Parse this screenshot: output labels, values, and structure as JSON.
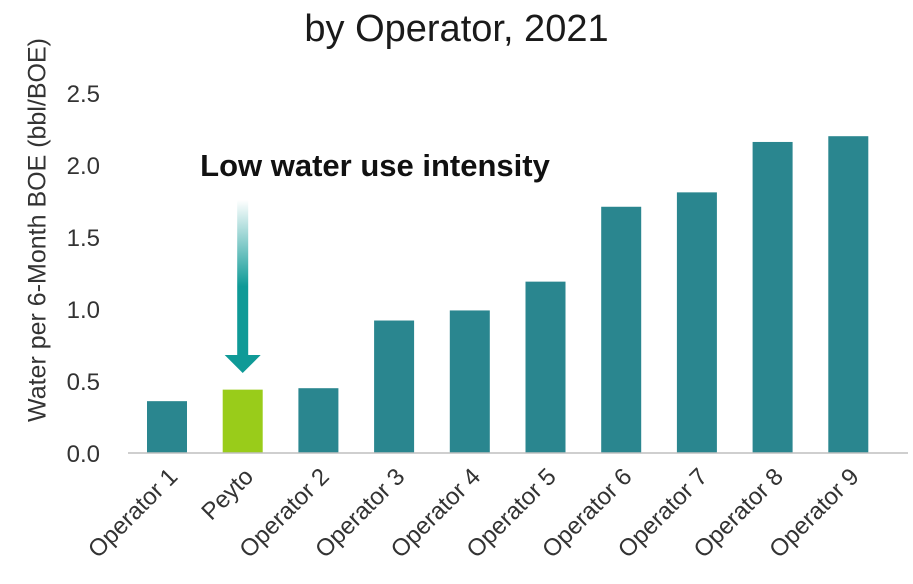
{
  "chart_data": {
    "type": "bar",
    "title": "by Operator, 2021",
    "ylabel": "Water per 6-Month BOE (bbl/BOE)",
    "xlabel": "",
    "ylim": [
      0,
      2.5
    ],
    "yticks": [
      "0.0",
      "0.5",
      "1.0",
      "1.5",
      "2.0",
      "2.5"
    ],
    "categories": [
      "Operator 1",
      "Peyto",
      "Operator 2",
      "Operator 3",
      "Operator 4",
      "Operator 5",
      "Operator 6",
      "Operator 7",
      "Operator 8",
      "Operator 9"
    ],
    "values": [
      0.36,
      0.44,
      0.45,
      0.92,
      0.99,
      1.19,
      1.71,
      1.81,
      2.16,
      2.2
    ],
    "highlight_category": "Peyto",
    "annotation": "Low water use intensity",
    "grid": false,
    "legend": "none",
    "colors": {
      "bar": "#2a868f",
      "highlight": "#99cc1a",
      "arrow": "#0f9a97"
    }
  },
  "title_top_partial": ""
}
